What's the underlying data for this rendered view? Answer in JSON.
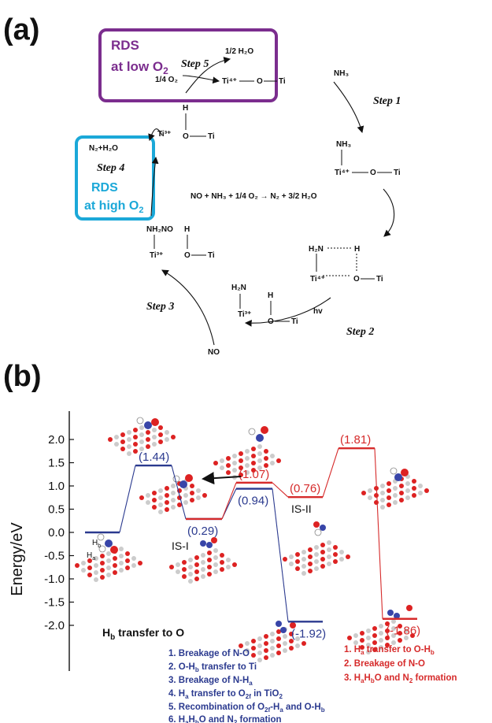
{
  "panel_a": {
    "label": "(a)",
    "rds_low": {
      "line1": "RDS",
      "line2": "at low O",
      "sub": "2"
    },
    "rds_high": {
      "line1": "RDS",
      "line2": "at high O",
      "sub": "2"
    },
    "steps": [
      "Step 1",
      "Step 2",
      "Step 3",
      "Step 4",
      "Step 5"
    ],
    "overall_reaction": "NO + NH₃ + 1/4 O₂ → N₂ + 3/2 H₂O",
    "species": {
      "half_h2o": "1/2 H₂O",
      "quarter_o2": "1/4 O₂",
      "nh3": "NH₃",
      "n2_h2o": "N₂+H₂O",
      "no": "NO",
      "hv": "hv",
      "h2n": "H₂N",
      "nh2no": "NH₂NO",
      "ti4": "Ti⁴⁺",
      "ti3": "Ti³⁺",
      "ti": "Ti",
      "o": "O",
      "h": "H"
    },
    "colors": {
      "rds_low": "#7b2d8e",
      "rds_high": "#1ba8d8"
    }
  },
  "panel_b": {
    "label": "(b)",
    "chart_data": {
      "type": "line",
      "ylabel": "Energy/eV",
      "ylim": [
        -2.2,
        2.2
      ],
      "yticks": [
        "2.0",
        "1.5",
        "1.0",
        "0.5",
        "0.0",
        "-0.5",
        "-1.0",
        "-1.5",
        "-2.0"
      ],
      "series": [
        {
          "color": "#2b3a8f",
          "levels": [
            0.0,
            1.44,
            0.29,
            0.94,
            -1.92
          ],
          "labels": [
            "",
            "(1.44)",
            "(0.29)",
            "(0.94)",
            "(-1.92)"
          ]
        },
        {
          "color": "#d62b2b",
          "levels": [
            0.29,
            1.07,
            0.76,
            1.81,
            -1.86
          ],
          "labels": [
            "",
            "(1.07)",
            "(0.76)",
            "(1.81)",
            "(-1.86)"
          ]
        }
      ],
      "annotations": {
        "is1": "IS-I",
        "is2": "IS-II",
        "hb": "H",
        "ha": "H"
      }
    },
    "caption_left": {
      "text": "H",
      "sub": "b",
      "rest": " transfer to O"
    },
    "blue_list": [
      "1. Breakage of N-O",
      "2. O-H",
      "3. Breakage of N-H",
      "4. H",
      "5. Recombination of O",
      "6. H"
    ],
    "red_list": [
      "1. H",
      "2. Breakage of N-O",
      "3. H"
    ]
  }
}
